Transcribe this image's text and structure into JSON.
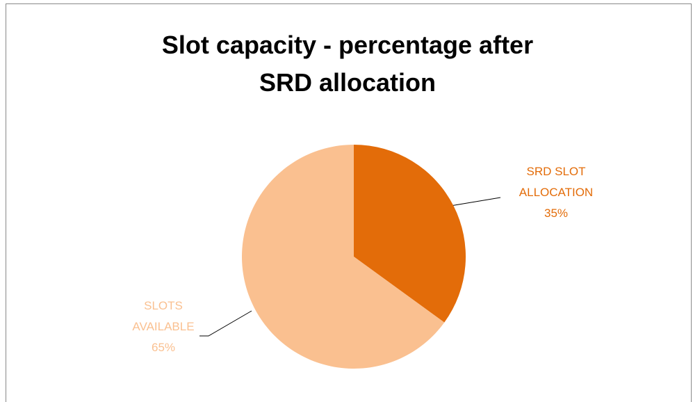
{
  "chart_data": {
    "type": "pie",
    "title": "Slot capacity - percentage after SRD allocation",
    "categories": [
      "SRD SLOT ALLOCATION",
      "SLOTS AVAILABLE"
    ],
    "values": [
      35,
      65
    ],
    "value_labels": [
      "35%",
      "65%"
    ],
    "colors": [
      "#E36C09",
      "#FAC090"
    ]
  }
}
